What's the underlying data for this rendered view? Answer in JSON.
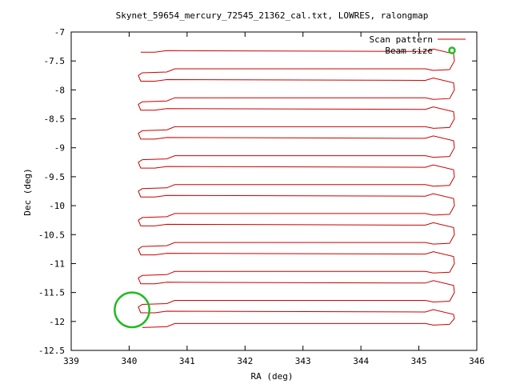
{
  "chart_data": {
    "type": "line",
    "title": "Skynet_59654_mercury_72545_21362_cal.txt, LOWRES, ralongmap",
    "xlabel": "RA (deg)",
    "ylabel": "Dec (deg)",
    "xlim": [
      339,
      346
    ],
    "ylim": [
      -12.5,
      -7
    ],
    "x_ticks": [
      339,
      340,
      341,
      342,
      343,
      344,
      345,
      346
    ],
    "y_ticks": [
      -7,
      -7.5,
      -8,
      -8.5,
      -9,
      -9.5,
      -10,
      -10.5,
      -11,
      -11.5,
      -12,
      -12.5
    ],
    "x_tick_labels": [
      "339",
      "340",
      "341",
      "342",
      "343",
      "344",
      "345",
      "346"
    ],
    "y_tick_labels": [
      "-7",
      "-7.5",
      "-8",
      "-8.5",
      "-9",
      "-9.5",
      "-10",
      "-10.5",
      "-11",
      "-11.5",
      "-12",
      "-12.5"
    ],
    "grid": false,
    "legend_position": "top-right",
    "series": [
      {
        "name": "Scan pattern",
        "color": "#cc0000",
        "scan_rows_dec": [
          -7.35,
          -7.65,
          -7.85,
          -8.15,
          -8.35,
          -8.65,
          -8.85,
          -9.15,
          -9.35,
          -9.65,
          -9.85,
          -10.15,
          -10.35,
          -10.65,
          -10.85,
          -11.15,
          -11.35,
          -11.65,
          -11.85,
          -12.05
        ],
        "ra_start": 340.2,
        "ra_end": 345.6
      },
      {
        "name": "Beam size",
        "color": "#22bb22",
        "center": [
          340.05,
          -11.8
        ],
        "radius_deg": 0.3
      }
    ]
  }
}
